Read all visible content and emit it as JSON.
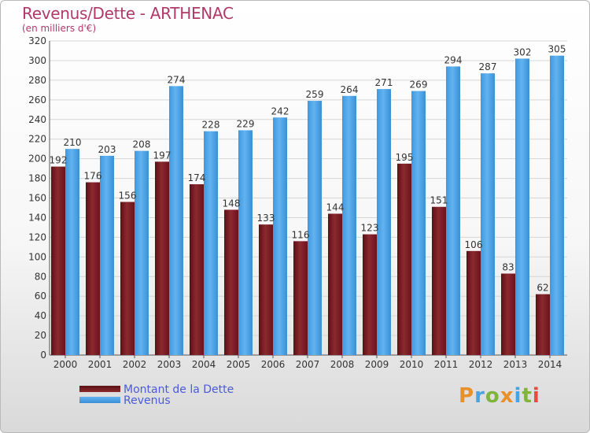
{
  "title": "Revenus/Dette - ARTHENAC",
  "subtitle": "(en milliers d'€)",
  "colors": {
    "dette": "#7a1e23",
    "revenus": "#4ba3e6",
    "title": "#b0396a",
    "legend_text": "#4a5bd8"
  },
  "logo": {
    "text": "Proxiti"
  },
  "chart_data": {
    "type": "bar",
    "title": "Revenus/Dette - ARTHENAC",
    "subtitle": "(en milliers d'€)",
    "categories": [
      "2000",
      "2001",
      "2002",
      "2003",
      "2004",
      "2005",
      "2006",
      "2007",
      "2008",
      "2009",
      "2010",
      "2011",
      "2012",
      "2013",
      "2014"
    ],
    "series": [
      {
        "name": "Montant de la Dette",
        "values": [
          192,
          176,
          156,
          197,
          174,
          148,
          133,
          116,
          144,
          123,
          195,
          151,
          106,
          83,
          62
        ]
      },
      {
        "name": "Revenus",
        "values": [
          210,
          203,
          208,
          274,
          228,
          229,
          242,
          259,
          264,
          271,
          269,
          294,
          287,
          302,
          305
        ]
      }
    ],
    "ylim": [
      0,
      320
    ],
    "yticks": [
      0,
      20,
      40,
      60,
      80,
      100,
      120,
      140,
      160,
      180,
      200,
      220,
      240,
      260,
      280,
      300,
      320
    ],
    "grid": true,
    "legend_position": "bottom-left"
  }
}
